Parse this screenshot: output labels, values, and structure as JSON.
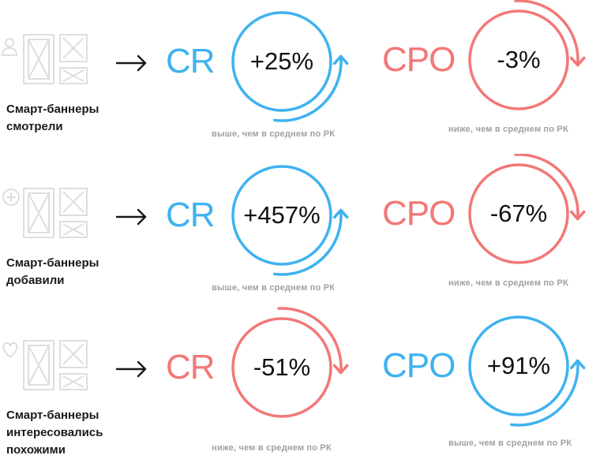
{
  "colors": {
    "blue": "#3fb2f0",
    "red": "#f27876",
    "icon_gray": "#dedede",
    "arrow_dark": "#1a1a1a",
    "note_gray": "#a0a0a0"
  },
  "rows": [
    {
      "icon": "person-icon",
      "caption": [
        "Смарт-баннеры",
        "смотрели"
      ],
      "cr": {
        "label": "CR",
        "value": "+25%",
        "note": "выше, чем в среднем по РК",
        "direction": "up"
      },
      "cpo": {
        "label": "CPO",
        "value": "-3%",
        "note": "ниже, чем в среднем по РК",
        "direction": "down"
      }
    },
    {
      "icon": "plus-circle-icon",
      "caption": [
        "Смарт-баннеры",
        "добавили"
      ],
      "cr": {
        "label": "CR",
        "value": "+457%",
        "note": "выше, чем в среднем по РК",
        "direction": "up"
      },
      "cpo": {
        "label": "CPO",
        "value": "-67%",
        "note": "ниже, чем в среднем по РК",
        "direction": "down"
      }
    },
    {
      "icon": "heart-icon",
      "caption": [
        "Смарт-баннеры",
        "интересовались",
        "похожими"
      ],
      "cr": {
        "label": "CR",
        "value": "-51%",
        "note": "ниже, чем в среднем по РК",
        "direction": "down"
      },
      "cpo": {
        "label": "CPO",
        "value": "+91%",
        "note": "выше, чем в среднем по РК",
        "direction": "up"
      }
    }
  ]
}
